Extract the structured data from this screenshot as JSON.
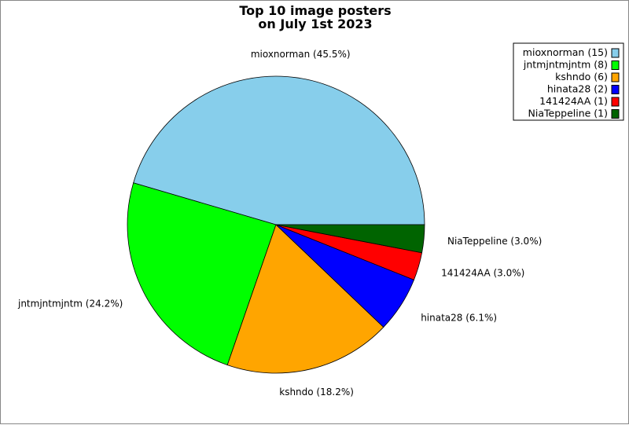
{
  "chart_data": {
    "type": "pie",
    "title_lines": [
      "Top 10 image posters",
      "on July 1st 2023"
    ],
    "slices": [
      {
        "name": "mioxnorman",
        "count": 15,
        "percent": 45.5,
        "color": "#87CEEB",
        "label": "mioxnorman (45.5%)",
        "legend": "mioxnorman (15)"
      },
      {
        "name": "jntmjntmjntm",
        "count": 8,
        "percent": 24.2,
        "color": "#00FF00",
        "label": "jntmjntmjntm (24.2%)",
        "legend": "jntmjntmjntm (8)"
      },
      {
        "name": "kshndo",
        "count": 6,
        "percent": 18.2,
        "color": "#FFA500",
        "label": "kshndo (18.2%)",
        "legend": "kshndo (6)"
      },
      {
        "name": "hinata28",
        "count": 2,
        "percent": 6.1,
        "color": "#0000FF",
        "label": "hinata28 (6.1%)",
        "legend": "hinata28 (2)"
      },
      {
        "name": "141424AA",
        "count": 1,
        "percent": 3.0,
        "color": "#FF0000",
        "label": "141424AA (3.0%)",
        "legend": "141424AA (1)"
      },
      {
        "name": "NiaTeppeline",
        "count": 1,
        "percent": 3.0,
        "color": "#006400",
        "label": "NiaTeppeline (3.0%)",
        "legend": "NiaTeppeline (1)"
      }
    ],
    "start_angle_deg": 0,
    "direction": "counterclockwise",
    "legend_position": "top-right"
  }
}
